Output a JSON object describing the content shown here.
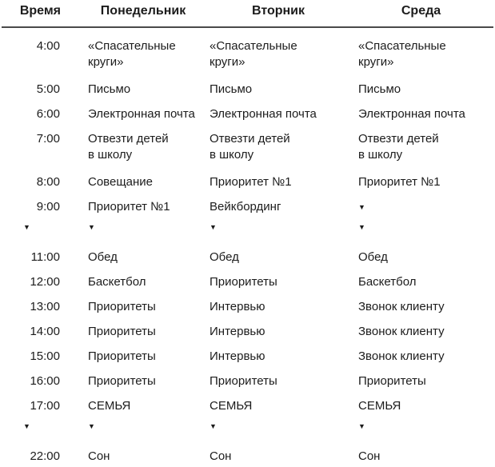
{
  "table": {
    "headers": [
      "Время",
      "Понедельник",
      "Вторник",
      "Среда"
    ],
    "triangle_marker": "▼",
    "rows": [
      {
        "time": [
          "4:00"
        ],
        "days": [
          [
            "«Спасательные",
            "круги»"
          ],
          [
            "«Спасательные",
            "круги»"
          ],
          [
            "«Спасательные",
            "круги»"
          ]
        ]
      },
      {
        "time": [
          "5:00"
        ],
        "days": [
          [
            "Письмо"
          ],
          [
            "Письмо"
          ],
          [
            "Письмо"
          ]
        ]
      },
      {
        "time": [
          "6:00"
        ],
        "days": [
          [
            "Электронная почта"
          ],
          [
            "Электронная почта"
          ],
          [
            "Электронная почта"
          ]
        ]
      },
      {
        "time": [
          "7:00"
        ],
        "days": [
          [
            "Отвезти детей",
            "в школу"
          ],
          [
            "Отвезти детей",
            "в школу"
          ],
          [
            "Отвезти детей",
            "в школу"
          ]
        ]
      },
      {
        "time": [
          "8:00"
        ],
        "days": [
          [
            "Совещание"
          ],
          [
            "Приоритет №1"
          ],
          [
            "Приоритет №1"
          ]
        ]
      },
      {
        "time": [
          "9:00",
          "▼"
        ],
        "days": [
          [
            "Приоритет №1",
            "▼"
          ],
          [
            "Вейкбординг",
            "▼"
          ],
          [
            "▼",
            "▼"
          ]
        ]
      },
      {
        "time": [
          "11:00"
        ],
        "days": [
          [
            "Обед"
          ],
          [
            "Обед"
          ],
          [
            "Обед"
          ]
        ]
      },
      {
        "time": [
          "12:00"
        ],
        "days": [
          [
            "Баскетбол"
          ],
          [
            "Приоритеты"
          ],
          [
            "Баскетбол"
          ]
        ]
      },
      {
        "time": [
          "13:00"
        ],
        "days": [
          [
            "Приоритеты"
          ],
          [
            "Интервью"
          ],
          [
            "Звонок клиенту"
          ]
        ]
      },
      {
        "time": [
          "14:00"
        ],
        "days": [
          [
            "Приоритеты"
          ],
          [
            "Интервью"
          ],
          [
            "Звонок клиенту"
          ]
        ]
      },
      {
        "time": [
          "15:00"
        ],
        "days": [
          [
            "Приоритеты"
          ],
          [
            "Интервью"
          ],
          [
            "Звонок клиенту"
          ]
        ]
      },
      {
        "time": [
          "16:00"
        ],
        "days": [
          [
            "Приоритеты"
          ],
          [
            "Приоритеты"
          ],
          [
            "Приоритеты"
          ]
        ]
      },
      {
        "time": [
          "17:00",
          "▼"
        ],
        "days": [
          [
            "СЕМЬЯ",
            "▼"
          ],
          [
            "СЕМЬЯ",
            "▼"
          ],
          [
            "СЕМЬЯ",
            "▼"
          ]
        ]
      },
      {
        "time": [
          "22:00"
        ],
        "days": [
          [
            "Сон"
          ],
          [
            "Сон"
          ],
          [
            "Сон"
          ]
        ]
      }
    ],
    "colors": {
      "text": "#1c1c1c",
      "rule": "#4a4a4a",
      "background": "#ffffff"
    }
  }
}
